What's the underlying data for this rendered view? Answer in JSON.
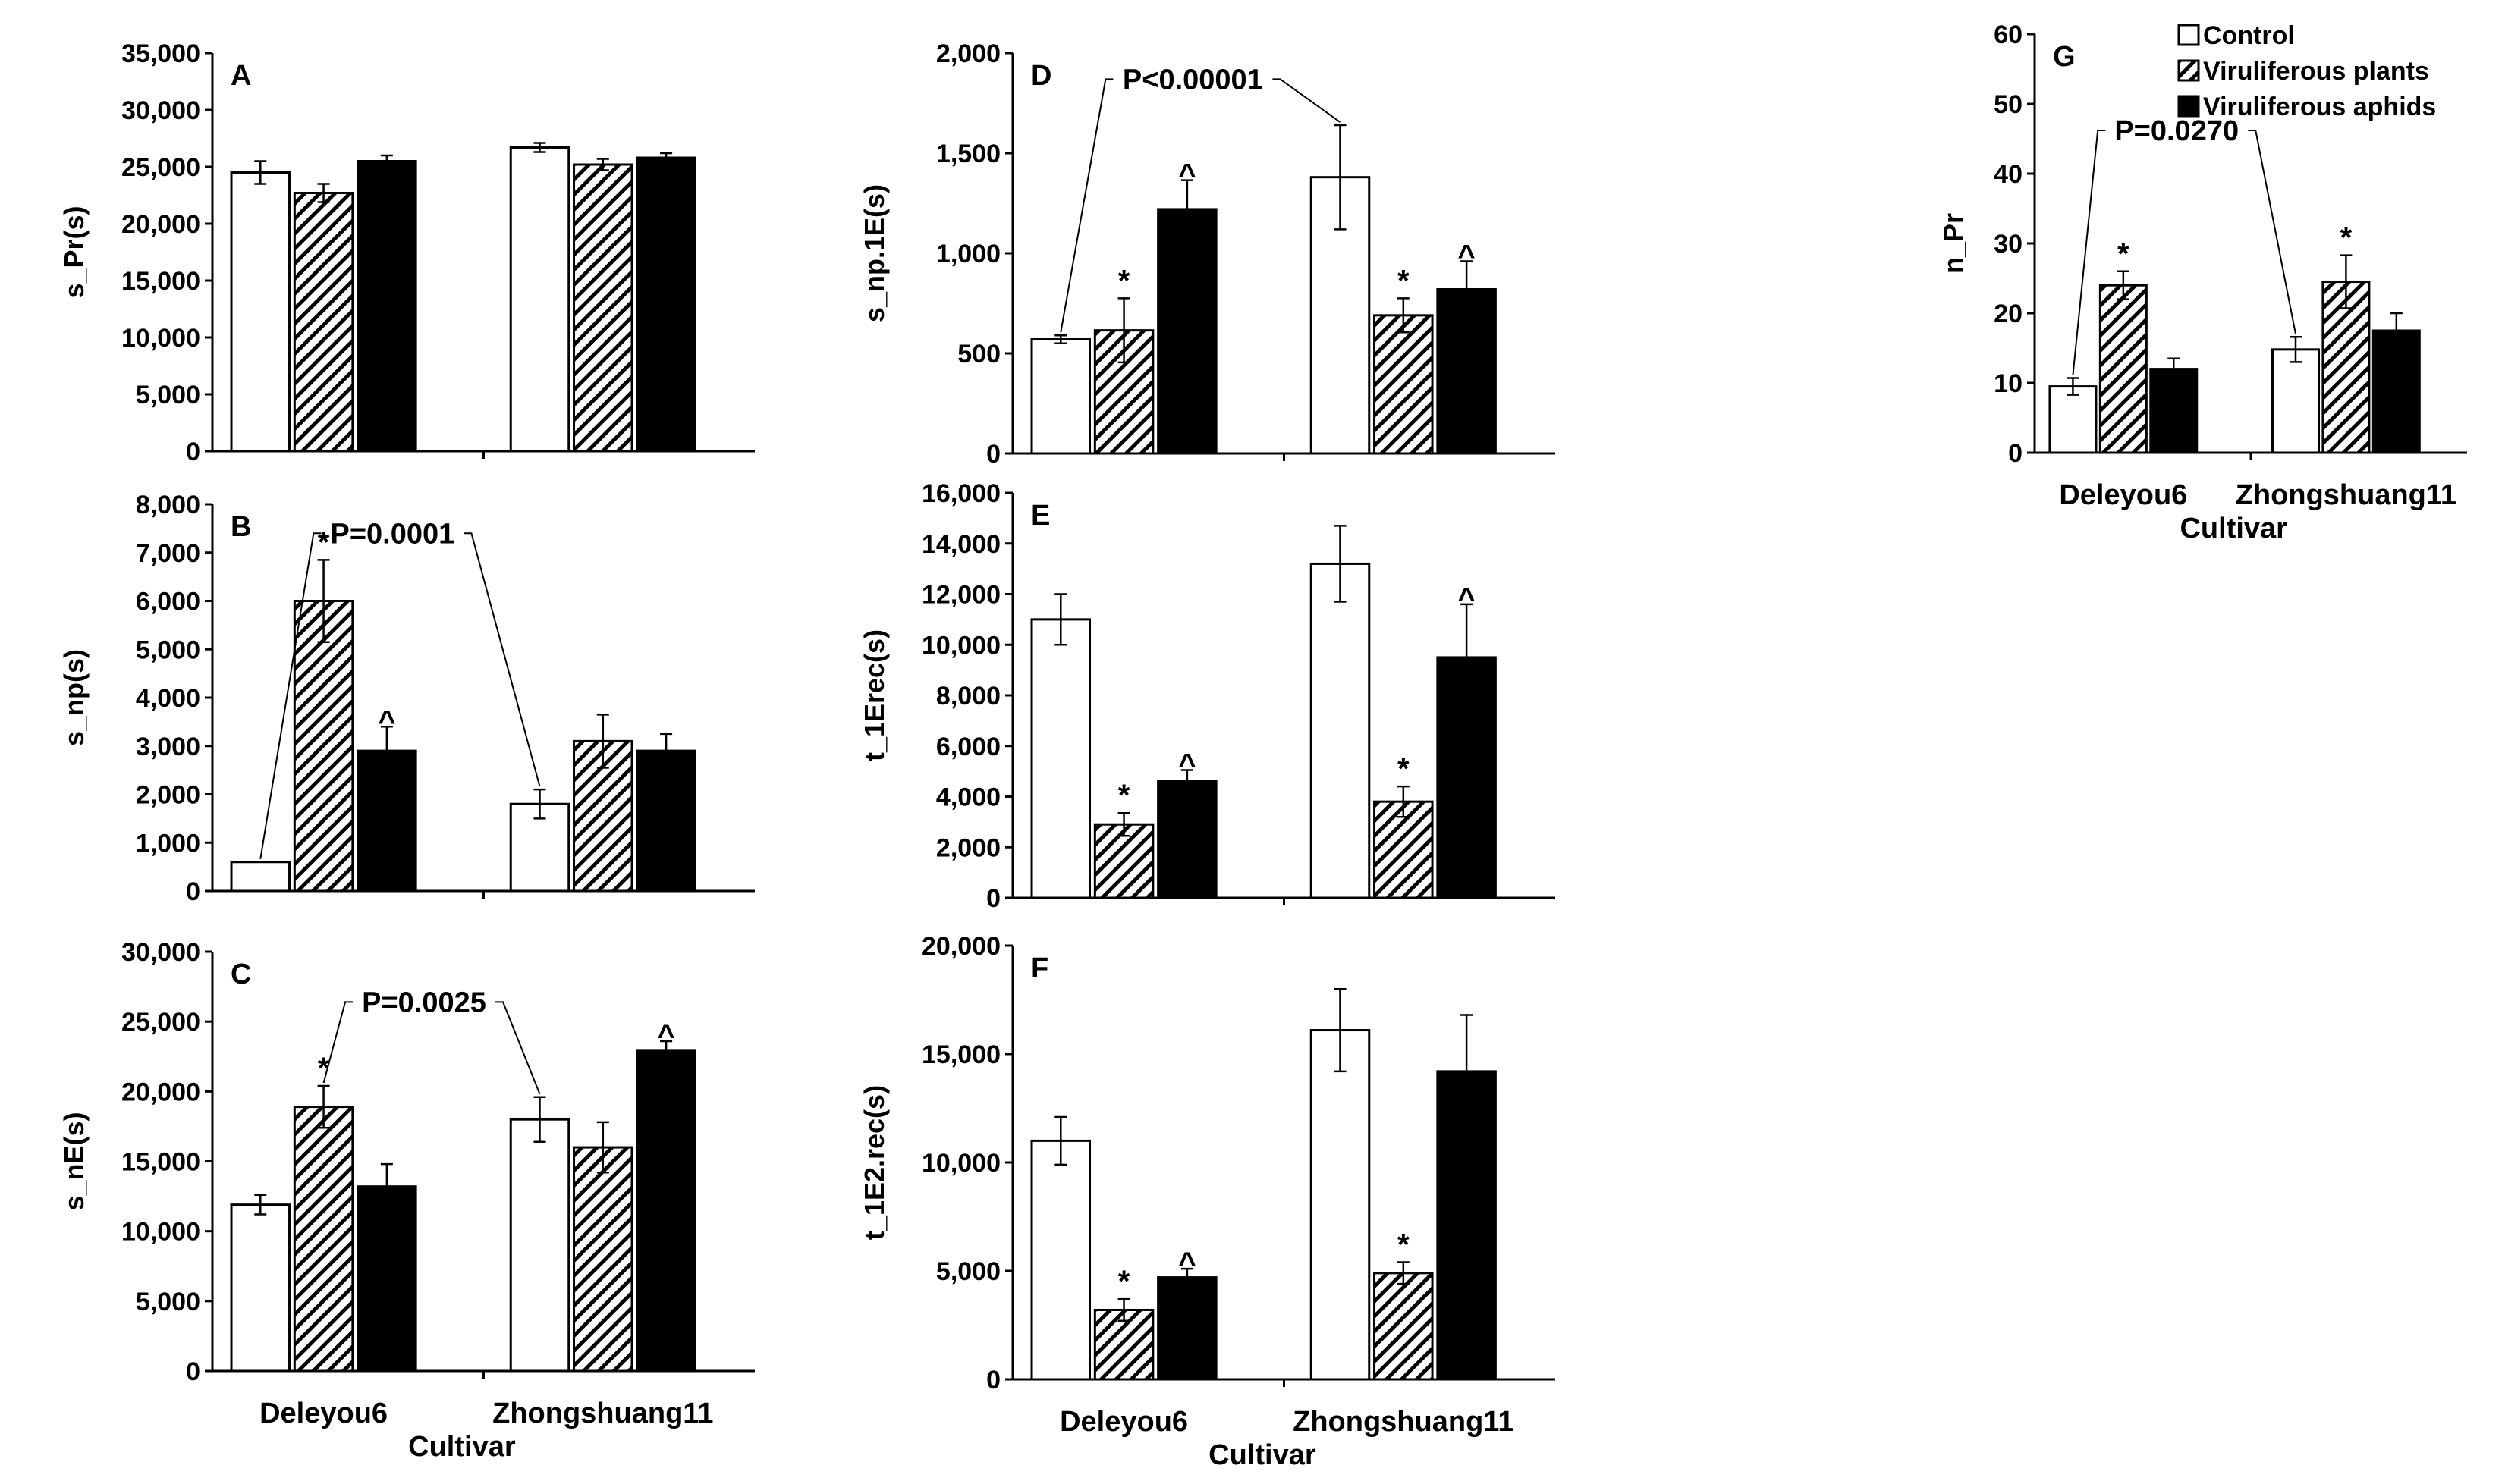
{
  "figure": {
    "categories": [
      "Deleyou6",
      "Zhongshuang11"
    ],
    "xlabel": "Cultivar",
    "legend": [
      {
        "label": "Control",
        "pattern": "open"
      },
      {
        "label": "Viruliferous plants",
        "pattern": "hatched"
      },
      {
        "label": "Viruliferous aphids",
        "pattern": "solid"
      }
    ]
  },
  "chart_data": [
    {
      "id": "A",
      "type": "bar",
      "title": "A",
      "ylabel": "s_Pr(s)",
      "ylim": [
        0,
        35000
      ],
      "yticks": [
        "0",
        "5,000",
        "10,000",
        "15,000",
        "20,000",
        "25,000",
        "30,000",
        "35,000"
      ],
      "categories": [
        "Deleyou6",
        "Zhongshuang11"
      ],
      "show_xcat": false,
      "show_xlabel": false,
      "series": [
        {
          "name": "Control",
          "values": [
            24500,
            26700
          ],
          "errors": [
            1000,
            400
          ],
          "marks": [
            "",
            ""
          ]
        },
        {
          "name": "Viruliferous plants",
          "values": [
            22700,
            25200
          ],
          "errors": [
            800,
            500
          ],
          "marks": [
            "",
            ""
          ]
        },
        {
          "name": "Viruliferous aphids",
          "values": [
            25500,
            25800
          ],
          "errors": [
            500,
            400
          ],
          "marks": [
            "",
            ""
          ]
        }
      ],
      "annotation": null
    },
    {
      "id": "B",
      "type": "bar",
      "title": "B",
      "ylabel": "s_np(s)",
      "ylim": [
        0,
        8000
      ],
      "yticks": [
        "0",
        "1,000",
        "2,000",
        "3,000",
        "4,000",
        "5,000",
        "6,000",
        "7,000",
        "8,000"
      ],
      "categories": [
        "Deleyou6",
        "Zhongshuang11"
      ],
      "show_xcat": false,
      "show_xlabel": false,
      "series": [
        {
          "name": "Control",
          "values": [
            600,
            1800
          ],
          "errors": [
            0,
            300
          ],
          "marks": [
            "",
            ""
          ]
        },
        {
          "name": "Viruliferous plants",
          "values": [
            6000,
            3100
          ],
          "errors": [
            850,
            550
          ],
          "marks": [
            "*",
            ""
          ]
        },
        {
          "name": "Viruliferous aphids",
          "values": [
            2900,
            2900
          ],
          "errors": [
            500,
            350
          ],
          "marks": [
            "^",
            ""
          ]
        }
      ],
      "annotation": {
        "text": "P=0.0001",
        "from": [
          0,
          0
        ],
        "to": [
          1,
          0
        ]
      }
    },
    {
      "id": "C",
      "type": "bar",
      "title": "C",
      "ylabel": "s_nE(s)",
      "ylim": [
        0,
        30000
      ],
      "yticks": [
        "0",
        "5,000",
        "10,000",
        "15,000",
        "20,000",
        "25,000",
        "30,000"
      ],
      "categories": [
        "Deleyou6",
        "Zhongshuang11"
      ],
      "show_xcat": true,
      "show_xlabel": true,
      "series": [
        {
          "name": "Control",
          "values": [
            11900,
            18000
          ],
          "errors": [
            700,
            1600
          ],
          "marks": [
            "",
            ""
          ]
        },
        {
          "name": "Viruliferous plants",
          "values": [
            18900,
            16000
          ],
          "errors": [
            1500,
            1800
          ],
          "marks": [
            "*",
            ""
          ]
        },
        {
          "name": "Viruliferous aphids",
          "values": [
            13200,
            22900
          ],
          "errors": [
            1600,
            700
          ],
          "marks": [
            "",
            "^"
          ]
        }
      ],
      "annotation": {
        "text": "P=0.0025",
        "from": [
          0,
          1
        ],
        "to": [
          1,
          0
        ]
      }
    },
    {
      "id": "D",
      "type": "bar",
      "title": "D",
      "ylabel": "s_np.1E(s)",
      "ylim": [
        0,
        2000
      ],
      "yticks": [
        "0",
        "500",
        "1,000",
        "1,500",
        "2,000"
      ],
      "categories": [
        "Deleyou6",
        "Zhongshuang11"
      ],
      "show_xcat": false,
      "show_xlabel": false,
      "series": [
        {
          "name": "Control",
          "values": [
            570,
            1380
          ],
          "errors": [
            20,
            260
          ],
          "marks": [
            "",
            ""
          ]
        },
        {
          "name": "Viruliferous plants",
          "values": [
            615,
            690
          ],
          "errors": [
            160,
            85
          ],
          "marks": [
            "*",
            "*"
          ]
        },
        {
          "name": "Viruliferous aphids",
          "values": [
            1220,
            820
          ],
          "errors": [
            145,
            140
          ],
          "marks": [
            "^",
            "^"
          ]
        }
      ],
      "annotation": {
        "text": "P<0.00001",
        "from": [
          0,
          0
        ],
        "to": [
          1,
          0
        ]
      }
    },
    {
      "id": "E",
      "type": "bar",
      "title": "E",
      "ylabel": "t_1Erec(s)",
      "ylim": [
        0,
        16000
      ],
      "yticks": [
        "0",
        "2,000",
        "4,000",
        "6,000",
        "8,000",
        "10,000",
        "12,000",
        "14,000",
        "16,000"
      ],
      "categories": [
        "Deleyou6",
        "Zhongshuang11"
      ],
      "show_xcat": false,
      "show_xlabel": false,
      "series": [
        {
          "name": "Control",
          "values": [
            11000,
            13200
          ],
          "errors": [
            1000,
            1500
          ],
          "marks": [
            "",
            ""
          ]
        },
        {
          "name": "Viruliferous plants",
          "values": [
            2900,
            3800
          ],
          "errors": [
            450,
            600
          ],
          "marks": [
            "*",
            "*"
          ]
        },
        {
          "name": "Viruliferous aphids",
          "values": [
            4600,
            9500
          ],
          "errors": [
            450,
            2100
          ],
          "marks": [
            "^",
            "^"
          ]
        }
      ],
      "annotation": null
    },
    {
      "id": "F",
      "type": "bar",
      "title": "F",
      "ylabel": "t_1E2.rec(s)",
      "ylim": [
        0,
        20000
      ],
      "yticks": [
        "0",
        "5,000",
        "10,000",
        "15,000",
        "20,000"
      ],
      "categories": [
        "Deleyou6",
        "Zhongshuang11"
      ],
      "show_xcat": true,
      "show_xlabel": true,
      "series": [
        {
          "name": "Control",
          "values": [
            11000,
            16100
          ],
          "errors": [
            1100,
            1900
          ],
          "marks": [
            "",
            ""
          ]
        },
        {
          "name": "Viruliferous plants",
          "values": [
            3200,
            4900
          ],
          "errors": [
            500,
            500
          ],
          "marks": [
            "*",
            "*"
          ]
        },
        {
          "name": "Viruliferous aphids",
          "values": [
            4700,
            14200
          ],
          "errors": [
            400,
            2600
          ],
          "marks": [
            "^",
            ""
          ]
        }
      ],
      "annotation": null
    },
    {
      "id": "G",
      "type": "bar",
      "title": "G",
      "ylabel": "n_Pr",
      "ylim": [
        0,
        60
      ],
      "yticks": [
        "0",
        "10",
        "20",
        "30",
        "40",
        "50",
        "60"
      ],
      "categories": [
        "Deleyou6",
        "Zhongshuang11"
      ],
      "show_xcat": true,
      "show_xlabel": true,
      "series": [
        {
          "name": "Control",
          "values": [
            9.5,
            14.8
          ],
          "errors": [
            1.2,
            1.8
          ],
          "marks": [
            "",
            ""
          ]
        },
        {
          "name": "Viruliferous plants",
          "values": [
            24,
            24.5
          ],
          "errors": [
            2,
            3.8
          ],
          "marks": [
            "*",
            "*"
          ]
        },
        {
          "name": "Viruliferous aphids",
          "values": [
            12,
            17.5
          ],
          "errors": [
            1.5,
            2.5
          ],
          "marks": [
            "",
            ""
          ]
        }
      ],
      "annotation": {
        "text": "P=0.0270",
        "from": [
          0,
          0
        ],
        "to": [
          1,
          0
        ]
      }
    }
  ]
}
